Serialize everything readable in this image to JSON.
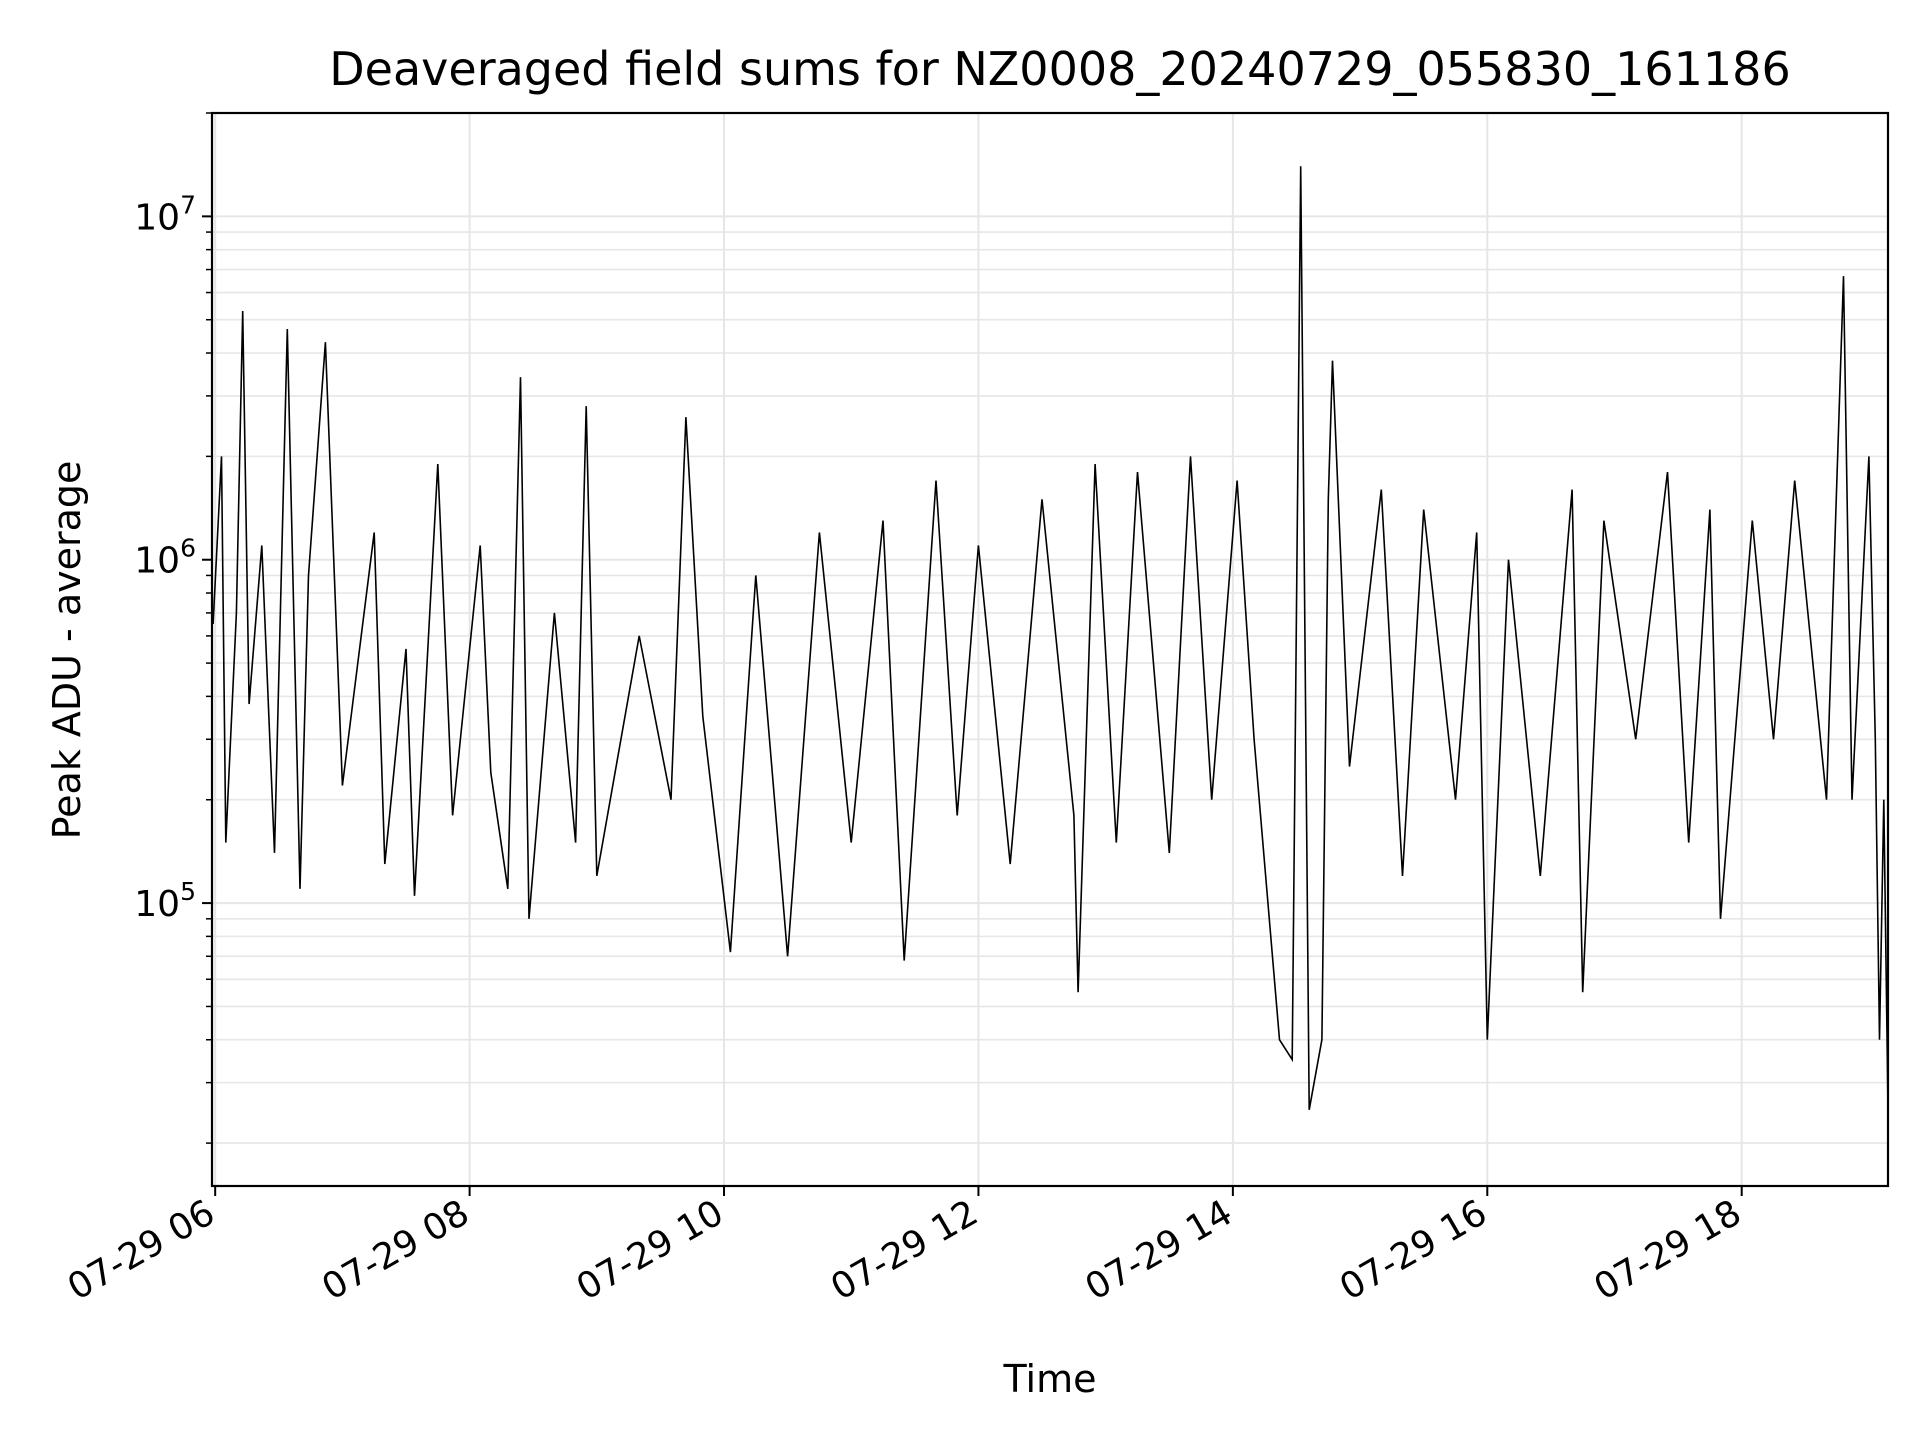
{
  "chart_data": {
    "type": "line",
    "title": "Deaveraged field sums for NZ0008_20240729_055830_161186",
    "xlabel": "Time",
    "ylabel": "Peak ADU - average",
    "xscale": "time",
    "yscale": "log",
    "xlim": [
      "2024-07-29 05:58:30",
      "2024-07-29 19:09:00"
    ],
    "ylim": [
      15000,
      20000000
    ],
    "grid": true,
    "line_color": "#000000",
    "grid_color": "#e6e6e6",
    "x_ticks": [
      {
        "value": "2024-07-29 06:00",
        "label": "07-29 06"
      },
      {
        "value": "2024-07-29 08:00",
        "label": "07-29 08"
      },
      {
        "value": "2024-07-29 10:00",
        "label": "07-29 10"
      },
      {
        "value": "2024-07-29 12:00",
        "label": "07-29 12"
      },
      {
        "value": "2024-07-29 14:00",
        "label": "07-29 14"
      },
      {
        "value": "2024-07-29 16:00",
        "label": "07-29 16"
      },
      {
        "value": "2024-07-29 18:00",
        "label": "07-29 18"
      }
    ],
    "y_ticks": [
      {
        "value": 100000,
        "base": "10",
        "exp": "5"
      },
      {
        "value": 1000000,
        "base": "10",
        "exp": "6"
      },
      {
        "value": 10000000,
        "base": "10",
        "exp": "7"
      }
    ],
    "series": [
      {
        "points": [
          [
            "2024-07-29 05:59",
            650000
          ],
          [
            "2024-07-29 06:03",
            2000000
          ],
          [
            "2024-07-29 06:05",
            150000
          ],
          [
            "2024-07-29 06:10",
            700000
          ],
          [
            "2024-07-29 06:13",
            5300000
          ],
          [
            "2024-07-29 06:16",
            380000
          ],
          [
            "2024-07-29 06:22",
            1100000
          ],
          [
            "2024-07-29 06:28",
            140000
          ],
          [
            "2024-07-29 06:34",
            4700000
          ],
          [
            "2024-07-29 06:40",
            110000
          ],
          [
            "2024-07-29 06:44",
            900000
          ],
          [
            "2024-07-29 06:52",
            4300000
          ],
          [
            "2024-07-29 07:00",
            220000
          ],
          [
            "2024-07-29 07:15",
            1200000
          ],
          [
            "2024-07-29 07:20",
            130000
          ],
          [
            "2024-07-29 07:30",
            550000
          ],
          [
            "2024-07-29 07:34",
            105000
          ],
          [
            "2024-07-29 07:45",
            1900000
          ],
          [
            "2024-07-29 07:52",
            180000
          ],
          [
            "2024-07-29 08:05",
            1100000
          ],
          [
            "2024-07-29 08:10",
            240000
          ],
          [
            "2024-07-29 08:18",
            110000
          ],
          [
            "2024-07-29 08:24",
            3400000
          ],
          [
            "2024-07-29 08:28",
            90000
          ],
          [
            "2024-07-29 08:40",
            700000
          ],
          [
            "2024-07-29 08:50",
            150000
          ],
          [
            "2024-07-29 08:55",
            2800000
          ],
          [
            "2024-07-29 09:00",
            120000
          ],
          [
            "2024-07-29 09:20",
            600000
          ],
          [
            "2024-07-29 09:35",
            200000
          ],
          [
            "2024-07-29 09:42",
            2600000
          ],
          [
            "2024-07-29 09:50",
            350000
          ],
          [
            "2024-07-29 10:03",
            72000
          ],
          [
            "2024-07-29 10:15",
            900000
          ],
          [
            "2024-07-29 10:30",
            70000
          ],
          [
            "2024-07-29 10:45",
            1200000
          ],
          [
            "2024-07-29 11:00",
            150000
          ],
          [
            "2024-07-29 11:15",
            1300000
          ],
          [
            "2024-07-29 11:25",
            68000
          ],
          [
            "2024-07-29 11:40",
            1700000
          ],
          [
            "2024-07-29 11:50",
            180000
          ],
          [
            "2024-07-29 12:00",
            1100000
          ],
          [
            "2024-07-29 12:15",
            130000
          ],
          [
            "2024-07-29 12:30",
            1500000
          ],
          [
            "2024-07-29 12:45",
            180000
          ],
          [
            "2024-07-29 12:47",
            55000
          ],
          [
            "2024-07-29 12:55",
            1900000
          ],
          [
            "2024-07-29 13:05",
            150000
          ],
          [
            "2024-07-29 13:15",
            1800000
          ],
          [
            "2024-07-29 13:30",
            140000
          ],
          [
            "2024-07-29 13:40",
            2000000
          ],
          [
            "2024-07-29 13:50",
            200000
          ],
          [
            "2024-07-29 14:02",
            1700000
          ],
          [
            "2024-07-29 14:10",
            300000
          ],
          [
            "2024-07-29 14:22",
            40000
          ],
          [
            "2024-07-29 14:28",
            35000
          ],
          [
            "2024-07-29 14:32",
            14000000
          ],
          [
            "2024-07-29 14:36",
            25000
          ],
          [
            "2024-07-29 14:42",
            40000
          ],
          [
            "2024-07-29 14:45",
            1500000
          ],
          [
            "2024-07-29 14:47",
            3800000
          ],
          [
            "2024-07-29 14:55",
            250000
          ],
          [
            "2024-07-29 15:10",
            1600000
          ],
          [
            "2024-07-29 15:20",
            120000
          ],
          [
            "2024-07-29 15:30",
            1400000
          ],
          [
            "2024-07-29 15:45",
            200000
          ],
          [
            "2024-07-29 15:55",
            1200000
          ],
          [
            "2024-07-29 16:00",
            40000
          ],
          [
            "2024-07-29 16:10",
            1000000
          ],
          [
            "2024-07-29 16:25",
            120000
          ],
          [
            "2024-07-29 16:40",
            1600000
          ],
          [
            "2024-07-29 16:45",
            55000
          ],
          [
            "2024-07-29 16:55",
            1300000
          ],
          [
            "2024-07-29 17:10",
            300000
          ],
          [
            "2024-07-29 17:25",
            1800000
          ],
          [
            "2024-07-29 17:35",
            150000
          ],
          [
            "2024-07-29 17:45",
            1400000
          ],
          [
            "2024-07-29 17:50",
            90000
          ],
          [
            "2024-07-29 18:05",
            1300000
          ],
          [
            "2024-07-29 18:15",
            300000
          ],
          [
            "2024-07-29 18:25",
            1700000
          ],
          [
            "2024-07-29 18:40",
            200000
          ],
          [
            "2024-07-29 18:48",
            6700000
          ],
          [
            "2024-07-29 18:52",
            200000
          ],
          [
            "2024-07-29 19:00",
            2000000
          ],
          [
            "2024-07-29 19:03",
            300000
          ],
          [
            "2024-07-29 19:05",
            40000
          ],
          [
            "2024-07-29 19:07",
            200000
          ],
          [
            "2024-07-29 19:09",
            25000
          ]
        ]
      }
    ]
  }
}
